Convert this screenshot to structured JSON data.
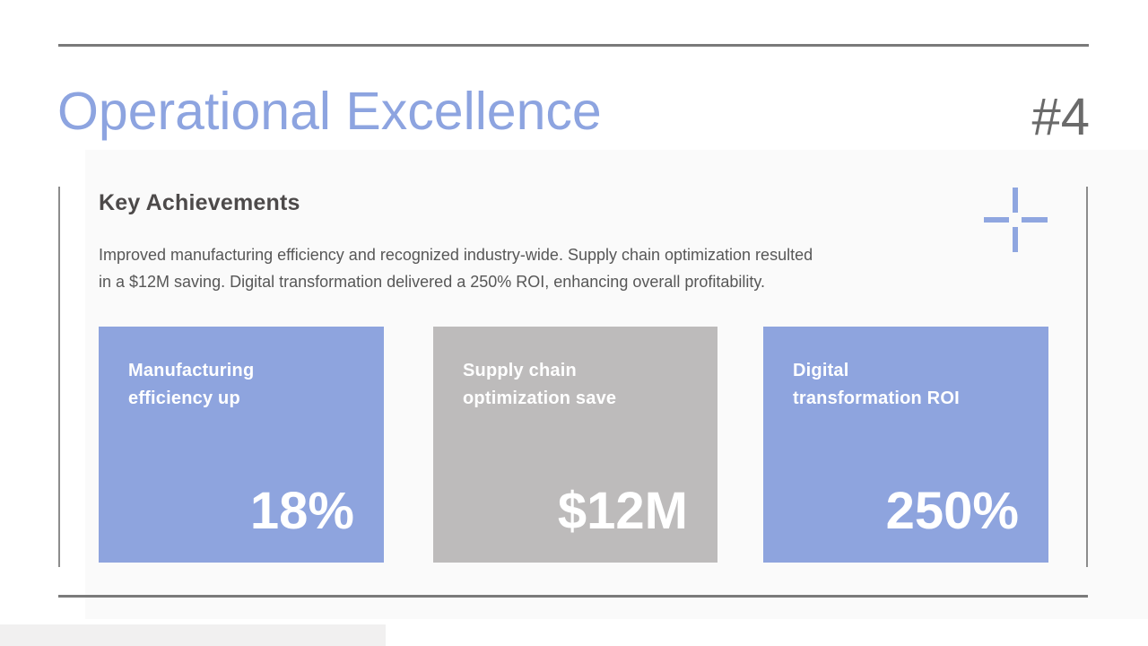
{
  "header": {
    "title": "Operational Excellence",
    "slide_number": "#4"
  },
  "content": {
    "heading": "Key Achievements",
    "body_lines": [
      "Improved manufacturing efficiency and recognized industry-wide. Supply chain optimization resulted",
      "in a $12M saving. Digital transformation delivered a 250% ROI, enhancing overall profitability."
    ],
    "cards": [
      {
        "label_lines": [
          "Manufacturing",
          "efficiency up"
        ],
        "value": "18%",
        "bg": "#8ea4de"
      },
      {
        "label_lines": [
          "Supply chain",
          "optimization save"
        ],
        "value": "$12M",
        "bg": "#bdbbbb"
      },
      {
        "label_lines": [
          "Digital",
          "transformation ROI"
        ],
        "value": "250%",
        "bg": "#8ea4de"
      }
    ]
  },
  "icons": {
    "crosshair": {
      "name": "crosshair-icon",
      "color": "#8fa6e0"
    }
  },
  "colors": {
    "accent_blue": "#8ea4de",
    "title_blue": "#8da4e0",
    "card_gray": "#bdbbbb",
    "rule_gray": "#7a7a7a",
    "slide_number_gray": "#6a6a6a",
    "heading_dark": "#4d4a4a",
    "body_gray": "#575757",
    "card_text": "#ffffff"
  }
}
